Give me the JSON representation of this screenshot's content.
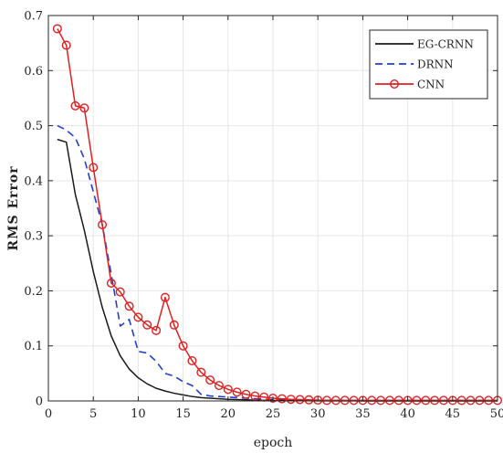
{
  "chart_data": {
    "type": "line",
    "title": "",
    "xlabel": "epoch",
    "ylabel": "RMS Error",
    "xlim": [
      0,
      50
    ],
    "ylim": [
      0,
      0.7
    ],
    "xticks": [
      "0",
      "5",
      "10",
      "15",
      "20",
      "25",
      "30",
      "35",
      "40",
      "45",
      "50"
    ],
    "yticks": [
      "0",
      "0.1",
      "0.2",
      "0.3",
      "0.4",
      "0.5",
      "0.6",
      "0.7"
    ],
    "grid": true,
    "legend_position": "top-right",
    "x": [
      1,
      2,
      3,
      4,
      5,
      6,
      7,
      8,
      9,
      10,
      11,
      12,
      13,
      14,
      15,
      16,
      17,
      18,
      19,
      20,
      21,
      22,
      23,
      24,
      25,
      26,
      27,
      28,
      29,
      30,
      31,
      32,
      33,
      34,
      35,
      36,
      37,
      38,
      39,
      40,
      41,
      42,
      43,
      44,
      45,
      46,
      47,
      48,
      49,
      50
    ],
    "series": [
      {
        "name": "EG-CRNN",
        "color": "#1a1a1a",
        "style": "solid",
        "marker": "none",
        "values": [
          0.475,
          0.47,
          0.375,
          0.31,
          0.235,
          0.17,
          0.118,
          0.082,
          0.058,
          0.042,
          0.031,
          0.023,
          0.018,
          0.014,
          0.011,
          0.008,
          0.006,
          0.005,
          0.004,
          0.003,
          0.0025,
          0.002,
          0.0015,
          0.001,
          0.001,
          0.0008,
          0.0006,
          0.0005,
          0.0004,
          0.0003,
          0.0003,
          0.0002,
          0.0002,
          0.0002,
          0.0001,
          0.0001,
          0.0001,
          0.0001,
          0.0001,
          0.0001,
          0.0001,
          0.0001,
          0.0001,
          0.0001,
          0.0001,
          0.0001,
          0.0001,
          0.0001,
          0.0001,
          0.0001
        ]
      },
      {
        "name": "DRNN",
        "color": "#1f3fd6",
        "style": "dashed",
        "marker": "none",
        "values": [
          0.5,
          0.492,
          0.478,
          0.44,
          0.38,
          0.32,
          0.23,
          0.136,
          0.148,
          0.09,
          0.087,
          0.072,
          0.05,
          0.045,
          0.035,
          0.028,
          0.012,
          0.009,
          0.008,
          0.007,
          0.006,
          0.005,
          0.004,
          0.003,
          0.002,
          0.002,
          0.0015,
          0.001,
          0.001,
          0.001,
          0.001,
          0.001,
          0.001,
          0.001,
          0.001,
          0.001,
          0.001,
          0.001,
          0.001,
          0.001,
          0.001,
          0.001,
          0.001,
          0.001,
          0.001,
          0.001,
          0.001,
          0.001,
          0.001,
          0.001
        ]
      },
      {
        "name": "CNN",
        "color": "#e02020",
        "style": "solid",
        "marker": "circle",
        "values": [
          0.676,
          0.646,
          0.536,
          0.532,
          0.424,
          0.32,
          0.214,
          0.198,
          0.172,
          0.152,
          0.138,
          0.128,
          0.188,
          0.138,
          0.1,
          0.073,
          0.052,
          0.038,
          0.028,
          0.021,
          0.016,
          0.012,
          0.009,
          0.007,
          0.005,
          0.004,
          0.003,
          0.0025,
          0.002,
          0.0015,
          0.001,
          0.001,
          0.001,
          0.001,
          0.001,
          0.001,
          0.001,
          0.001,
          0.001,
          0.001,
          0.001,
          0.001,
          0.001,
          0.001,
          0.001,
          0.001,
          0.001,
          0.001,
          0.001,
          0.001
        ]
      }
    ]
  }
}
